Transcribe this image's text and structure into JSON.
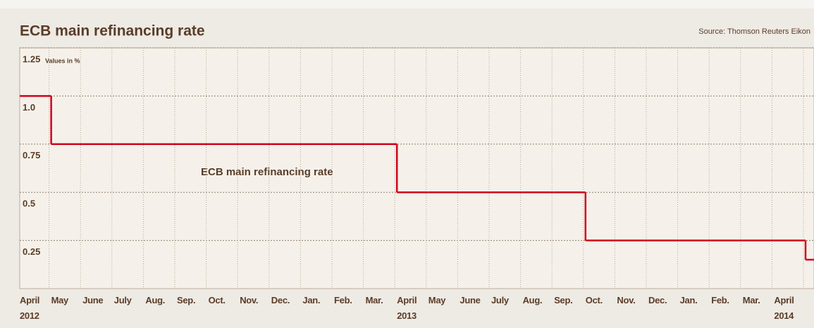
{
  "chart_data": {
    "type": "line",
    "step": true,
    "title": "ECB main refinancing rate",
    "source": "Source: Thomson Reuters Eikon",
    "unit_note": "Values in %",
    "line_label": "ECB main refinancing rate",
    "categories": [
      "April 2012",
      "May",
      "June",
      "July",
      "Aug.",
      "Sep.",
      "Oct.",
      "Nov.",
      "Dec.",
      "Jan.",
      "Feb.",
      "Mar.",
      "April 2013",
      "May",
      "June",
      "July",
      "Aug.",
      "Sep.",
      "Oct.",
      "Nov.",
      "Dec.",
      "Jan.",
      "Feb.",
      "Mar.",
      "April 2014",
      null
    ],
    "series": [
      {
        "name": "ECB main refinancing rate",
        "color": "#d0021b",
        "values": [
          1,
          0.75,
          0.75,
          0.75,
          0.75,
          0.75,
          0.75,
          0.75,
          0.75,
          0.75,
          0.75,
          0.75,
          0.5,
          0.5,
          0.5,
          0.5,
          0.5,
          0.5,
          0.25,
          0.25,
          0.25,
          0.25,
          0.25,
          0.25,
          0.25,
          0.15
        ]
      }
    ],
    "ylim": [
      0,
      1.25
    ],
    "yticks": [
      0.25,
      0.5,
      0.75,
      {
        "value": 1,
        "label": "1.0"
      },
      1.25
    ],
    "grid": true
  }
}
